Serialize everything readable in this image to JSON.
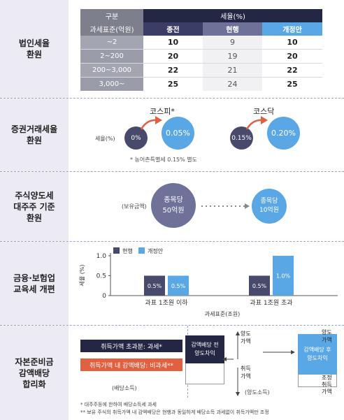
{
  "sections": {
    "corp_tax": {
      "label": "법인세율\n환원"
    },
    "securities_tax": {
      "label": "증권거래세율\n환원"
    },
    "major_shareholder": {
      "label": "주식양도세\n대주주 기준\n환원"
    },
    "edu_tax": {
      "label": "금융·보험업\n교육세 개편"
    },
    "reserve": {
      "label": "자본준비금\n감액배당\n합리화"
    }
  },
  "rate_table": {
    "col_group": "구분",
    "col_base": "과세표준(억원)",
    "tax_rate": "세율(%)",
    "col_before": "종전",
    "col_current": "현행",
    "col_proposed": "개정안",
    "rows": [
      {
        "base": "~2",
        "before": "10",
        "current": "9",
        "proposed": "10"
      },
      {
        "base": "2~200",
        "before": "20",
        "current": "19",
        "proposed": "20"
      },
      {
        "base": "200~3,000",
        "before": "22",
        "current": "21",
        "proposed": "22"
      },
      {
        "base": "3,000~",
        "before": "25",
        "current": "24",
        "proposed": "25"
      }
    ]
  },
  "securities": {
    "kospi_title": "코스피*",
    "kosdaq_title": "코스닥",
    "rate_label": "세율(%)",
    "kospi_current": "0%",
    "kospi_proposed": "0.05%",
    "kosdaq_current": "0.15%",
    "kosdaq_proposed": "0.20%",
    "footnote": "* 농어촌특별세 0.15% 별도"
  },
  "major": {
    "holding_label": "(보유금액)",
    "current": "종목당\n50억원",
    "proposed": "종목당\n10억원"
  },
  "edu_chart": {
    "ylabel": "세율 (%)",
    "xlabel": "과세표준(조원)",
    "legend_current": "현행",
    "legend_proposed": "개정안",
    "color_current": "#484a6b",
    "color_proposed": "#5aa7e6",
    "y_ticks": [
      "1.0",
      "0.5",
      "0"
    ]
  },
  "chart_data": {
    "type": "bar",
    "categories": [
      "과표 1조원 이하",
      "과표 1조원 초과"
    ],
    "series": [
      {
        "name": "현행",
        "values": [
          0.5,
          0.5
        ],
        "labels": [
          "0.5%",
          "0.5%"
        ]
      },
      {
        "name": "개정안",
        "values": [
          0.5,
          1.0
        ],
        "labels": [
          "0.5%",
          "1.0%"
        ]
      }
    ],
    "xlabel": "과세표준(조원)",
    "ylabel": "세율 (%)",
    "ylim": [
      0,
      1.0
    ],
    "y_ticks": [
      0,
      0.5,
      1.0
    ],
    "legend": "top-left"
  },
  "reserve": {
    "excess_box": "취득가액 초과분: 과세*",
    "within_box": "취득가액 내 감액배당: 비과세**",
    "dividend_label": "(배당소득)",
    "transfer_label": "(양도소득)",
    "before_box": "감액배당 전\n양도차익",
    "after_box": "감액배당 후\n양도차익",
    "transfer_price_1": "양도\n가액",
    "acq_price_1": "취득\n가액",
    "transfer_price_2": "양도\n가액",
    "adj_acq_price": "조정\n취득\n가액",
    "footnote1": "* 대주주등에 한하여 배당소득세 과세",
    "footnote2": "** 보유 주식의 취득가액 내 감액배당은 현행과 동일하게 배당소득 과세없이 취득가액만 조정"
  }
}
